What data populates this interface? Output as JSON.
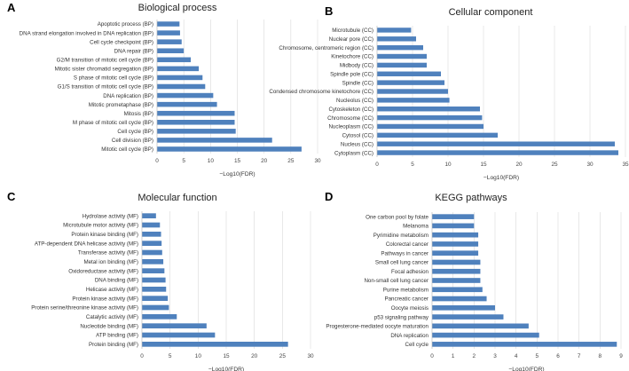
{
  "chart_data": [
    {
      "type": "bar",
      "orientation": "horizontal",
      "panel": "A",
      "title": "Biological process",
      "xlabel": "−Log10(FDR)",
      "ylabel": "",
      "xlim": [
        0,
        30
      ],
      "xticks": [
        0,
        5,
        10,
        15,
        20,
        25,
        30
      ],
      "grid": true,
      "bar_color": "#4f81bd",
      "categories": [
        "Apoptotic process (BP)",
        "DNA strand elongation involved in DNA replication (BP)",
        "Cell cycle checkpoint (BP)",
        "DNA repair (BP)",
        "G2/M transition of mitotic cell cycle (BP)",
        "Mitotic sister chromatid segregation (BP)",
        "S phase of mitotic cell cycle (BP)",
        "G1/S transition of mitotic cell cycle (BP)",
        "DNA replication (BP)",
        "Mitotic prometaphase (BP)",
        "Mitosis (BP)",
        "M phase of mitotic cell cycle (BP)",
        "Cell cycle (BP)",
        "Cell division (BP)",
        "Mitotic cell cycle (BP)"
      ],
      "values": [
        4.2,
        4.3,
        4.6,
        5.0,
        6.3,
        7.8,
        8.5,
        9.0,
        10.5,
        11.2,
        14.5,
        14.5,
        14.7,
        21.5,
        27.0
      ]
    },
    {
      "type": "bar",
      "orientation": "horizontal",
      "panel": "B",
      "title": "Cellular component",
      "xlabel": "−Log10(FDR)",
      "ylabel": "",
      "xlim": [
        0,
        35
      ],
      "xticks": [
        0,
        5,
        10,
        15,
        20,
        25,
        30,
        35
      ],
      "grid": true,
      "bar_color": "#4f81bd",
      "categories": [
        "Microtubule (CC)",
        "Nuclear pore (CC)",
        "Chromosome, centromeric region (CC)",
        "Kinetochore (CC)",
        "Midbody (CC)",
        "Spindle pole (CC)",
        "Spindle (CC)",
        "Condensed chromosome kinetochore (CC)",
        "Nucleolus (CC)",
        "Cytoskeleton (CC)",
        "Chromosome (CC)",
        "Nucleoplasm (CC)",
        "Cytosol (CC)",
        "Nucleus (CC)",
        "Cytoplasm (CC)"
      ],
      "values": [
        4.8,
        5.5,
        6.5,
        7.0,
        7.0,
        9.0,
        9.5,
        10.0,
        10.2,
        14.5,
        14.8,
        15.0,
        17.0,
        33.5,
        34.0
      ]
    },
    {
      "type": "bar",
      "orientation": "horizontal",
      "panel": "C",
      "title": "Molecular function",
      "xlabel": "−Log10(FDR)",
      "ylabel": "",
      "xlim": [
        0,
        30
      ],
      "xticks": [
        0,
        5,
        10,
        15,
        20,
        25,
        30
      ],
      "grid": true,
      "bar_color": "#4f81bd",
      "categories": [
        "Hydrolase activity (MF)",
        "Microtubule motor activity (MF)",
        "Protein kinase binding (MF)",
        "ATP-dependent DNA helicase activity (MF)",
        "Transferase activity (MF)",
        "Metal ion binding (MF)",
        "Oxidoreductase activity (MF)",
        "DNA binding (MF)",
        "Helicase activity (MF)",
        "Protein kinase activity (MF)",
        "Protein serine/threonine kinase activity (MF)",
        "Catalytic activity (MF)",
        "Nucleotide binding (MF)",
        "ATP binding (MF)",
        "Protein binding (MF)"
      ],
      "values": [
        2.5,
        3.2,
        3.4,
        3.5,
        3.6,
        3.8,
        4.0,
        4.2,
        4.3,
        4.6,
        4.8,
        6.2,
        11.5,
        13.0,
        26.0
      ]
    },
    {
      "type": "bar",
      "orientation": "horizontal",
      "panel": "D",
      "title": "KEGG pathways",
      "xlabel": "−Log10(FDR)",
      "ylabel": "",
      "xlim": [
        0,
        9
      ],
      "xticks": [
        0,
        1,
        2,
        3,
        4,
        5,
        6,
        7,
        8,
        9
      ],
      "grid": true,
      "bar_color": "#4f81bd",
      "categories": [
        "One carbon pool by folate",
        "Melanoma",
        "Pyrimidine metabolism",
        "Colorectal cancer",
        "Pathways in cancer",
        "Small cell lung cancer",
        "Focal adhesion",
        "Non-small cell lung cancer",
        "Purine metabolism",
        "Pancreatic cancer",
        "Oocyte meiosis",
        "p53 signaling pathway",
        "Progesterone-mediated oocyte maturation",
        "DNA replication",
        "Cell cycle"
      ],
      "values": [
        2.0,
        2.0,
        2.2,
        2.2,
        2.2,
        2.3,
        2.3,
        2.3,
        2.4,
        2.6,
        3.0,
        3.4,
        4.6,
        5.1,
        8.8
      ]
    }
  ]
}
